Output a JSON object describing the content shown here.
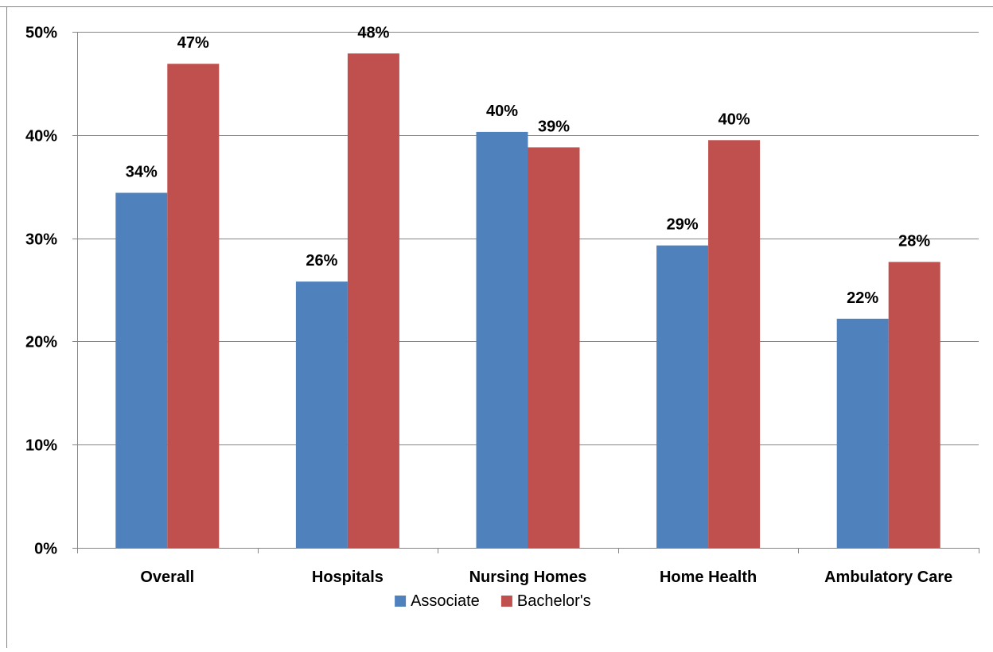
{
  "chart_data": {
    "type": "bar",
    "categories": [
      "Overall",
      "Hospitals",
      "Nursing Homes",
      "Home Health",
      "Ambulatory Care"
    ],
    "series": [
      {
        "name": "Associate",
        "color": "#4F81BD",
        "values": [
          34.4,
          25.8,
          40.3,
          29.3,
          22.2
        ],
        "labels": [
          "34%",
          "26%",
          "40%",
          "29%",
          "22%"
        ]
      },
      {
        "name": "Bachelor's",
        "color": "#C0504D",
        "values": [
          46.9,
          47.9,
          38.8,
          39.5,
          27.7
        ],
        "labels": [
          "47%",
          "48%",
          "39%",
          "40%",
          "28%"
        ]
      }
    ],
    "ylim": [
      0,
      50
    ],
    "yticks": [
      0,
      10,
      20,
      30,
      40,
      50
    ],
    "ytick_labels": [
      "0%",
      "10%",
      "20%",
      "30%",
      "40%",
      "50%"
    ],
    "grid": true,
    "legend_position": "bottom",
    "title": "",
    "xlabel": "",
    "ylabel": ""
  }
}
